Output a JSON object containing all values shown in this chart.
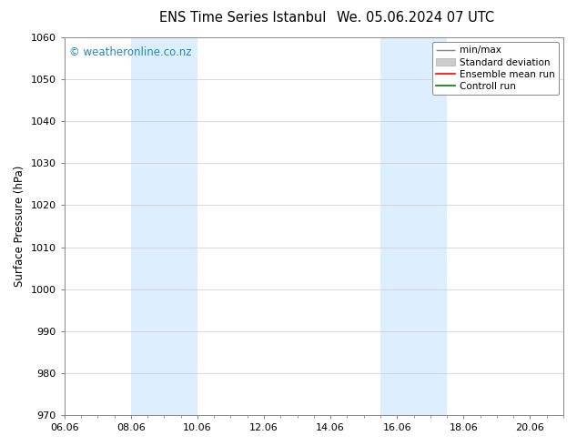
{
  "title_left": "ENS Time Series Istanbul",
  "title_right": "We. 05.06.2024 07 UTC",
  "ylabel": "Surface Pressure (hPa)",
  "ylim": [
    970,
    1060
  ],
  "yticks": [
    970,
    980,
    990,
    1000,
    1010,
    1020,
    1030,
    1040,
    1050,
    1060
  ],
  "xlim_start": 0.0,
  "xlim_end": 15.0,
  "xtick_labels": [
    "06.06",
    "08.06",
    "10.06",
    "12.06",
    "14.06",
    "16.06",
    "18.06",
    "20.06"
  ],
  "xtick_positions": [
    0,
    2,
    4,
    6,
    8,
    10,
    12,
    14
  ],
  "shade_bands": [
    {
      "xmin": 2.0,
      "xmax": 4.0
    },
    {
      "xmin": 9.5,
      "xmax": 11.5
    }
  ],
  "shade_color": "#ddeeff",
  "shade_alpha": 1.0,
  "watermark": "© weatheronline.co.nz",
  "watermark_color": "#2288bb",
  "watermark_fontsize": 8.5,
  "bg_color": "#ffffff",
  "grid_color": "#cccccc",
  "title_fontsize": 10.5,
  "axis_label_fontsize": 8.5,
  "tick_fontsize": 8,
  "spine_color": "#888888"
}
